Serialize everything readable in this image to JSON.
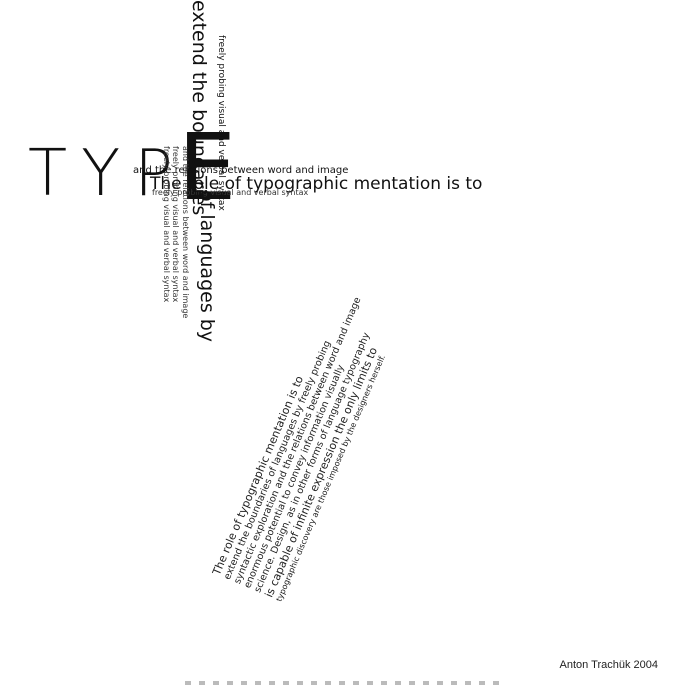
{
  "title": {
    "type_word": "TYP",
    "big_e": "E"
  },
  "horizontal": {
    "main": "The role of typographic mentation is to",
    "small_above": "and the relations between word and image",
    "small_below": "freely probing visual and verbal syntax"
  },
  "vertical": {
    "extend": "extend the boundaries",
    "languages": "of languages by",
    "small": "freely probing visual and verbal syntax",
    "cluster": [
      "freely probing visual and verbal syntax",
      "freely probing visual and verbal syntax",
      "and the relations between word and image"
    ]
  },
  "diagonal": {
    "lines": [
      "The role of typographic mentation is to",
      "extend the boundaries of languages by freely probing",
      "syntactic exploration and the relations between word and image",
      "enormous potential to convey information visually",
      "science. Design, as in other forms of language typography",
      "is capable of infinite expression the only limits to",
      "typographic discovery are those imposed by the designers herself."
    ]
  },
  "credit": "Anton Trachük 2004"
}
